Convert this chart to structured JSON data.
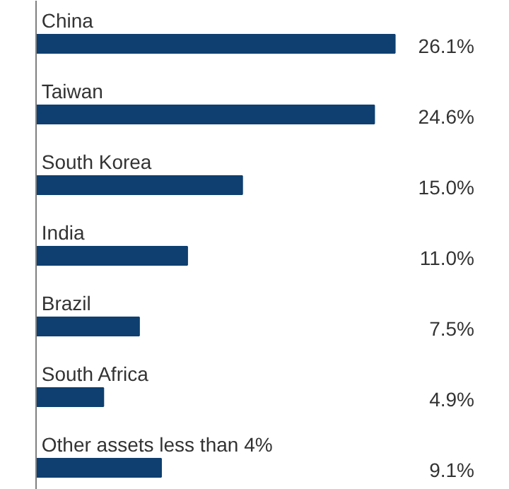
{
  "chart_data": {
    "type": "bar",
    "orientation": "horizontal",
    "categories": [
      "China",
      "Taiwan",
      "South Korea",
      "India",
      "Brazil",
      "South Africa",
      "Other assets less than 4%"
    ],
    "values": [
      26.1,
      24.6,
      15.0,
      11.0,
      7.5,
      4.9,
      9.1
    ],
    "value_labels": [
      "26.1%",
      "24.6%",
      "15.0%",
      "11.0%",
      "7.5%",
      "4.9%",
      "9.1%"
    ],
    "color": "#0e3f70",
    "grid": false
  }
}
